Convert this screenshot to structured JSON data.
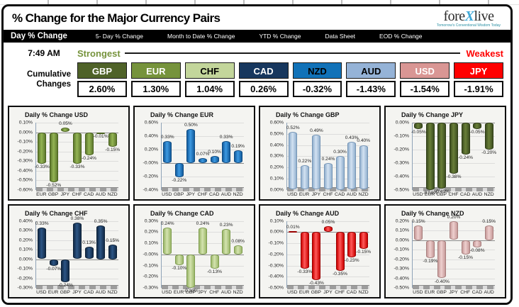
{
  "header": {
    "title": "% Change for the Major Currency Pairs",
    "logo": {
      "part1": "fore",
      "x": "X",
      "part2": "live",
      "tagline": "Tomorrow's Conventional Wisdom Today"
    }
  },
  "tabs": [
    {
      "label": "Day % Change",
      "active": true
    },
    {
      "label": "5- Day % Change",
      "active": false
    },
    {
      "label": "Month to Date % Change",
      "active": false
    },
    {
      "label": "YTD % Change",
      "active": false
    },
    {
      "label": "Data Sheet",
      "active": false
    },
    {
      "label": "EOD % Change",
      "active": false
    }
  ],
  "ranking": {
    "time": "7:49 AM",
    "strongest_label": "Strongest",
    "weakest_label": "Weakest",
    "strongest_color": "#76933C",
    "weakest_color": "#FF0000",
    "row_label_line1": "Cumulative",
    "row_label_line2": "Changes",
    "currencies": [
      {
        "code": "GBP",
        "value": "2.60%",
        "bg": "#4F6228",
        "fg": "#FFFFFF"
      },
      {
        "code": "EUR",
        "value": "1.30%",
        "bg": "#76933C",
        "fg": "#FFFFFF"
      },
      {
        "code": "CHF",
        "value": "1.04%",
        "bg": "#C3D69B",
        "fg": "#000000"
      },
      {
        "code": "CAD",
        "value": "0.26%",
        "bg": "#17375E",
        "fg": "#FFFFFF"
      },
      {
        "code": "NZD",
        "value": "-0.32%",
        "bg": "#1172B8",
        "fg": "#000000"
      },
      {
        "code": "AUD",
        "value": "-1.43%",
        "bg": "#95B3D7",
        "fg": "#000000"
      },
      {
        "code": "USD",
        "value": "-1.54%",
        "bg": "#D99694",
        "fg": "#FFFFFF"
      },
      {
        "code": "JPY",
        "value": "-1.91%",
        "bg": "#FF0000",
        "fg": "#FFFFFF"
      }
    ]
  },
  "chart_data": [
    {
      "type": "bar",
      "title": "Daily % Change USD",
      "categories": [
        "EUR",
        "GBP",
        "JPY",
        "CHF",
        "CAD",
        "AUD",
        "NZD"
      ],
      "values": [
        -0.33,
        -0.52,
        0.05,
        -0.33,
        -0.24,
        -0.01,
        -0.15
      ],
      "ylim": [
        -0.6,
        0.1
      ],
      "ystep": 0.1,
      "grid": true,
      "colors": {
        "light": "#94b554",
        "dark": "#5f7a2e",
        "border": "#49611f"
      }
    },
    {
      "type": "bar",
      "title": "Daily % Change EUR",
      "categories": [
        "USD",
        "GBP",
        "JPY",
        "CHF",
        "CAD",
        "AUD",
        "NZD"
      ],
      "values": [
        0.33,
        -0.22,
        0.5,
        0.07,
        0.1,
        0.33,
        0.19
      ],
      "ylim": [
        -0.4,
        0.6
      ],
      "ystep": 0.2,
      "grid": true,
      "colors": {
        "light": "#3d9ae2",
        "dark": "#135c9e",
        "border": "#0f4a80"
      }
    },
    {
      "type": "bar",
      "title": "Daily % Change GBP",
      "categories": [
        "USD",
        "EUR",
        "JPY",
        "CHF",
        "CAD",
        "AUD",
        "NZD"
      ],
      "values": [
        0.52,
        0.22,
        0.49,
        0.24,
        0.3,
        0.43,
        0.4
      ],
      "ylim": [
        0.0,
        0.6
      ],
      "ystep": 0.1,
      "grid": true,
      "colors": {
        "light": "#d3e2f2",
        "dark": "#93b1cf",
        "border": "#7494b5"
      }
    },
    {
      "type": "bar",
      "title": "Daily % Change JPY",
      "categories": [
        "USD",
        "EUR",
        "GBP",
        "CHF",
        "CAD",
        "AUD",
        "NZD"
      ],
      "values": [
        -0.05,
        -0.5,
        -0.49,
        -0.38,
        -0.24,
        -0.05,
        -0.2
      ],
      "ylim": [
        -0.5,
        0.0
      ],
      "ystep": 0.1,
      "grid": true,
      "colors": {
        "light": "#697f38",
        "dark": "#3e4f20",
        "border": "#2f3d17"
      }
    },
    {
      "type": "bar",
      "title": "Daily % Change CHF",
      "categories": [
        "USD",
        "EUR",
        "GBP",
        "JPY",
        "CAD",
        "AUD",
        "NZD"
      ],
      "values": [
        0.33,
        -0.07,
        -0.24,
        0.38,
        0.13,
        0.35,
        0.15
      ],
      "ylim": [
        -0.3,
        0.4
      ],
      "ystep": 0.1,
      "grid": true,
      "colors": {
        "light": "#2c5585",
        "dark": "#122b49",
        "border": "#0e2238"
      }
    },
    {
      "type": "bar",
      "title": "Daily % Change CAD",
      "categories": [
        "USD",
        "EUR",
        "GBP",
        "JPY",
        "CHF",
        "AUD",
        "NZD"
      ],
      "values": [
        0.24,
        -0.1,
        -0.3,
        0.24,
        -0.13,
        0.23,
        0.08
      ],
      "ylim": [
        -0.3,
        0.3
      ],
      "ystep": 0.1,
      "grid": true,
      "colors": {
        "light": "#d4e3b0",
        "dark": "#9cb86a",
        "border": "#7f9c50"
      }
    },
    {
      "type": "bar",
      "title": "Daily % Change AUD",
      "categories": [
        "USD",
        "EUR",
        "GBP",
        "JPY",
        "CHF",
        "CAD",
        "NZD"
      ],
      "values": [
        0.01,
        -0.33,
        -0.43,
        0.05,
        -0.35,
        -0.23,
        -0.15
      ],
      "ylim": [
        -0.5,
        0.1
      ],
      "ystep": 0.1,
      "grid": true,
      "colors": {
        "light": "#ff5a5a",
        "dark": "#cc0000",
        "border": "#990000"
      }
    },
    {
      "type": "bar",
      "title": "Daily % Change NZD",
      "categories": [
        "USD",
        "EUR",
        "GBP",
        "JPY",
        "CHF",
        "CAD",
        "AUD"
      ],
      "values": [
        0.15,
        -0.19,
        -0.4,
        0.2,
        -0.15,
        -0.08,
        0.15
      ],
      "ylim": [
        -0.5,
        0.2
      ],
      "ystep": 0.1,
      "grid": true,
      "colors": {
        "light": "#eed0cf",
        "dark": "#c79a99",
        "border": "#a87f7e"
      }
    }
  ]
}
